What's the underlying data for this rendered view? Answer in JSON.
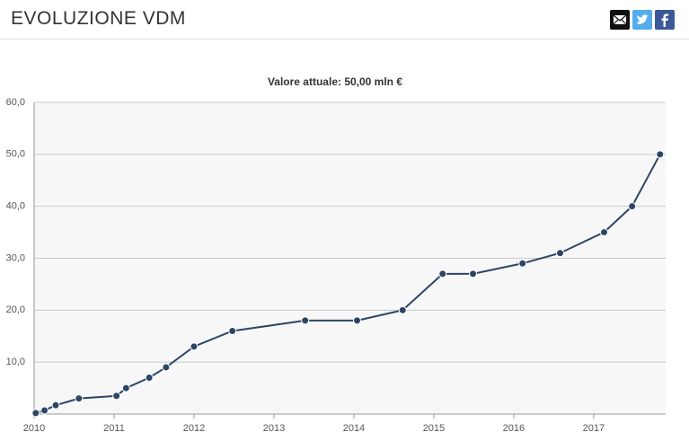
{
  "header": {
    "title": "EVOLUZIONE VDM"
  },
  "chart_data": {
    "type": "line",
    "title": "Valore attuale: 50,00 mln €",
    "x": [
      2010.02,
      2010.13,
      2010.27,
      2010.56,
      2011.03,
      2011.15,
      2011.44,
      2011.65,
      2012.0,
      2012.48,
      2013.39,
      2014.04,
      2014.61,
      2015.11,
      2015.49,
      2016.11,
      2016.58,
      2017.13,
      2017.48,
      2017.83
    ],
    "series": [
      {
        "color": "#2c4565",
        "values": [
          0.2,
          0.7,
          1.7,
          3.0,
          3.5,
          5.0,
          7.0,
          9.0,
          13.0,
          16.0,
          18.0,
          18.0,
          20.0,
          27.0,
          27.0,
          29.0,
          31.0,
          35.0,
          40.0,
          50.0
        ]
      }
    ],
    "xlim": [
      2010,
      2017.9
    ],
    "xticks": [
      2010,
      2011,
      2012,
      2013,
      2014,
      2015,
      2016,
      2017
    ],
    "ylim": [
      0,
      60
    ],
    "yticks": [
      {
        "value": 10,
        "label": "10,0"
      },
      {
        "value": 20,
        "label": "20,0"
      },
      {
        "value": 30,
        "label": "30,0"
      },
      {
        "value": 40,
        "label": "40,0"
      },
      {
        "value": 50,
        "label": "50,0"
      },
      {
        "value": 60,
        "label": "60,0"
      }
    ],
    "grid": true
  }
}
